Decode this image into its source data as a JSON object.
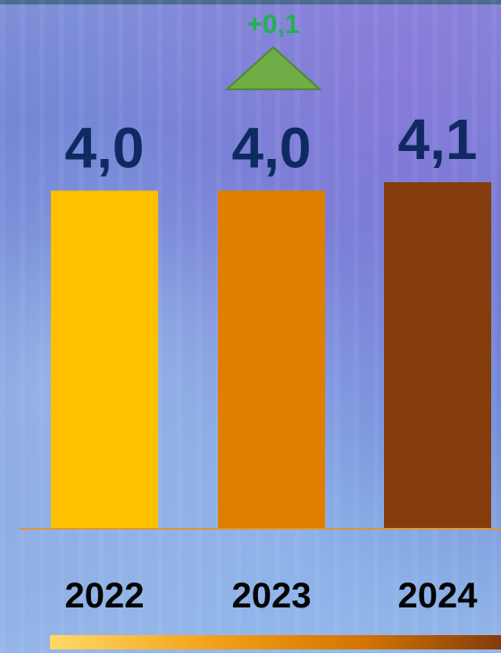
{
  "chart_data": {
    "type": "bar",
    "categories": [
      "2022",
      "2023",
      "2024"
    ],
    "values": [
      4.0,
      4.0,
      4.1
    ],
    "value_labels": [
      "4,0",
      "4,0",
      "4,1"
    ],
    "bar_colors": [
      "#ffc000",
      "#e07e00",
      "#843c0c"
    ],
    "title": "",
    "xlabel": "",
    "ylabel": "",
    "grid": false,
    "legend": "none",
    "ylim": [
      0,
      4.1
    ],
    "annotation": {
      "text": "+0,1",
      "category": "2023",
      "marker": "up-triangle",
      "text_color": "#21b150",
      "marker_color": "#70ad47"
    },
    "baseline_color": "#e0943a",
    "bottom_gradient": [
      "#ffd966",
      "#f4a21a",
      "#d27400",
      "#843c0c"
    ]
  }
}
